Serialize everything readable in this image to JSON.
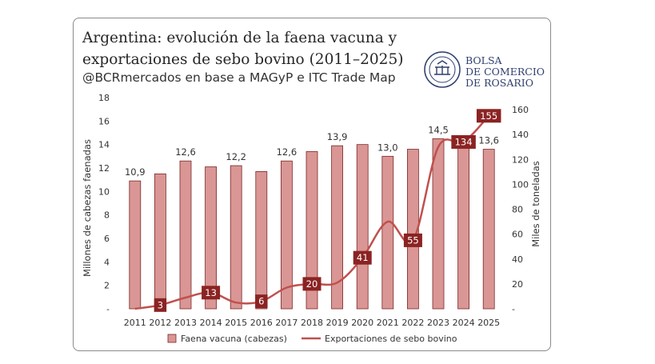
{
  "header": {
    "title": "Argentina: evolución de la faena vacuna y exportaciones de sebo bovino (2011–2025)",
    "subtitle": "@BCRmercados en base a MAGyP e ITC Trade Map"
  },
  "logo": {
    "line1": "BOLSA",
    "line2": "DE COMERCIO",
    "line3": "DE ROSARIO",
    "seal_icon": "bcr-seal-icon"
  },
  "colors": {
    "bar_fill": "#d99694",
    "bar_stroke": "#7a2828",
    "line": "#c0504d",
    "line_label_bg": "#8b2323"
  },
  "chart_data": {
    "type": "bar+line",
    "categories": [
      "2011",
      "2012",
      "2013",
      "2014",
      "2015",
      "2016",
      "2017",
      "2018",
      "2019",
      "2020",
      "2021",
      "2022",
      "2023",
      "2024",
      "2025"
    ],
    "series": [
      {
        "name": "Faena vacuna (cabezas)",
        "type": "bar",
        "axis": "left",
        "values": [
          10.9,
          11.5,
          12.6,
          12.1,
          12.2,
          11.7,
          12.6,
          13.4,
          13.9,
          14.0,
          13.0,
          13.6,
          14.5,
          14.1,
          13.6
        ],
        "labels": [
          "10,9",
          "",
          "12,6",
          "",
          "12,2",
          "",
          "12,6",
          "",
          "13,9",
          "",
          "13,0",
          "",
          "14,5",
          "",
          "13,6"
        ]
      },
      {
        "name": "Exportaciones de sebo bovino",
        "type": "line",
        "axis": "right",
        "values": [
          0,
          3,
          9,
          13,
          5,
          6,
          17,
          20,
          21,
          41,
          70,
          55,
          130,
          134,
          155
        ],
        "labels": [
          "",
          "3",
          "",
          "13",
          "",
          "6",
          "",
          "20",
          "",
          "41",
          "",
          "55",
          "",
          "134",
          "155"
        ]
      }
    ],
    "ylabel_left": "Millones de cabezas faenadas",
    "ylabel_right": "Miles de toneladas",
    "ylim_left": [
      0,
      18
    ],
    "yticks_left": [
      "-",
      "2",
      "4",
      "6",
      "8",
      "10",
      "12",
      "14",
      "16",
      "18"
    ],
    "ylim_right": [
      0,
      160
    ],
    "yticks_right": [
      "-",
      "20",
      "40",
      "60",
      "80",
      "100",
      "120",
      "140",
      "160"
    ],
    "grid": false,
    "legend_position": "bottom"
  }
}
